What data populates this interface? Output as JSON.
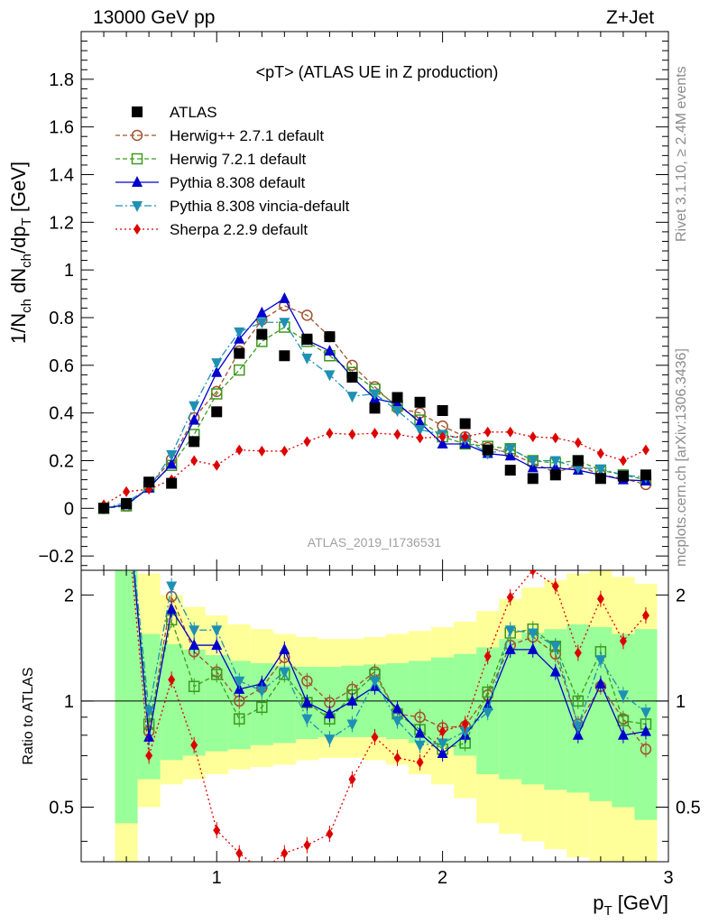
{
  "header": {
    "energy_label": "13000 GeV pp",
    "process_label": "Z+Jet"
  },
  "side_labels": {
    "rivet": "Rivet 3.1.10, ≥ 2.4M events",
    "mcplots": "mcplots.cern.ch [arXiv:1306.3436]"
  },
  "colors": {
    "ATLAS": "#000000",
    "herwigpp": "#a0522d",
    "herwig7": "#3c9a1e",
    "pythia": "#0000cc",
    "vincia": "#1e90b4",
    "sherpa": "#dd0000",
    "band_inner": "#99ff99",
    "band_outer": "#ffff99"
  },
  "chart_data": [
    {
      "type": "line",
      "title": "<pT> (ATLAS UE in Z production)",
      "watermark": "ATLAS_2019_I1736531",
      "ylabel": "1/N_ch dN_ch/dp_T [GeV]",
      "xlim": [
        0.4,
        3.0
      ],
      "ylim": [
        -0.26,
        2.0
      ],
      "y_ticks": [
        "−0.2",
        "0",
        "0.2",
        "0.4",
        "0.6",
        "0.8",
        "1",
        "1.2",
        "1.4",
        "1.6",
        "1.8"
      ],
      "legend_placement": "top-left",
      "x": [
        0.5,
        0.6,
        0.7,
        0.8,
        0.9,
        1.0,
        1.1,
        1.2,
        1.3,
        1.4,
        1.5,
        1.6,
        1.7,
        1.8,
        1.9,
        2.0,
        2.1,
        2.2,
        2.3,
        2.4,
        2.5,
        2.6,
        2.7,
        2.8,
        2.9
      ],
      "series": [
        {
          "name": "ATLAS",
          "values": [
            0.0,
            0.02,
            0.11,
            0.105,
            0.28,
            0.405,
            0.65,
            0.73,
            0.64,
            0.71,
            0.72,
            0.55,
            0.42,
            0.465,
            0.445,
            0.41,
            0.355,
            0.245,
            0.16,
            0.125,
            0.14,
            0.2,
            0.125,
            0.135,
            0.14
          ]
        },
        {
          "name": "Herwig++ 2.7.1 default",
          "values": [
            0.0,
            0.01,
            0.09,
            0.205,
            0.38,
            0.49,
            0.66,
            0.79,
            0.85,
            0.81,
            0.72,
            0.6,
            0.51,
            0.42,
            0.4,
            0.345,
            0.3,
            0.255,
            0.23,
            0.19,
            0.15,
            0.18,
            0.14,
            0.125,
            0.1
          ]
        },
        {
          "name": "Herwig 7.2.1 default",
          "values": [
            0.0,
            0.01,
            0.09,
            0.18,
            0.31,
            0.48,
            0.58,
            0.7,
            0.76,
            0.7,
            0.64,
            0.57,
            0.5,
            0.43,
            0.37,
            0.3,
            0.27,
            0.26,
            0.25,
            0.2,
            0.19,
            0.2,
            0.16,
            0.14,
            0.12
          ]
        },
        {
          "name": "Pythia 8.308 default",
          "values": [
            0.0,
            0.015,
            0.085,
            0.185,
            0.37,
            0.57,
            0.71,
            0.82,
            0.88,
            0.705,
            0.66,
            0.55,
            0.46,
            0.44,
            0.36,
            0.27,
            0.27,
            0.23,
            0.22,
            0.17,
            0.17,
            0.16,
            0.14,
            0.12,
            0.115
          ]
        },
        {
          "name": "Pythia 8.308 vincia-default",
          "values": [
            0.0,
            0.025,
            0.085,
            0.225,
            0.43,
            0.61,
            0.74,
            0.78,
            0.78,
            0.63,
            0.56,
            0.47,
            0.48,
            0.41,
            0.33,
            0.31,
            0.29,
            0.23,
            0.25,
            0.2,
            0.2,
            0.17,
            0.165,
            0.14,
            0.13
          ]
        },
        {
          "name": "Sherpa 2.2.9 default",
          "values": [
            0.015,
            0.07,
            0.08,
            0.12,
            0.2,
            0.18,
            0.245,
            0.24,
            0.24,
            0.28,
            0.315,
            0.31,
            0.315,
            0.31,
            0.295,
            0.3,
            0.3,
            0.32,
            0.32,
            0.3,
            0.295,
            0.275,
            0.23,
            0.2,
            0.245
          ]
        }
      ]
    },
    {
      "type": "line",
      "ylabel": "Ratio to ATLAS",
      "xlabel": "p_T [GeV]",
      "xlim": [
        0.4,
        3.0
      ],
      "ylim": [
        0.35,
        2.35
      ],
      "log_y": true,
      "reference_line": 1,
      "y_ticks": [
        "0.5",
        "1",
        "2"
      ],
      "x_ticks": [
        "1",
        "2",
        "3"
      ],
      "x": [
        0.5,
        0.6,
        0.7,
        0.8,
        0.9,
        1.0,
        1.1,
        1.2,
        1.3,
        1.4,
        1.5,
        1.6,
        1.7,
        1.8,
        1.9,
        2.0,
        2.1,
        2.2,
        2.3,
        2.4,
        2.5,
        2.6,
        2.7,
        2.8,
        2.9
      ],
      "bands": {
        "inner_low": [
          null,
          0.45,
          0.6,
          0.68,
          0.7,
          0.72,
          0.73,
          0.75,
          0.76,
          0.78,
          0.79,
          0.79,
          0.79,
          0.78,
          0.76,
          0.74,
          0.7,
          0.62,
          0.6,
          0.58,
          0.56,
          0.55,
          0.52,
          0.5,
          0.46
        ],
        "inner_high": [
          null,
          2.6,
          1.55,
          1.45,
          1.4,
          1.35,
          1.3,
          1.28,
          1.26,
          1.25,
          1.25,
          1.26,
          1.27,
          1.28,
          1.3,
          1.33,
          1.36,
          1.42,
          1.5,
          1.56,
          1.6,
          1.65,
          1.62,
          1.55,
          1.6
        ],
        "outer_low": [
          null,
          0.33,
          0.5,
          0.58,
          0.6,
          0.62,
          0.64,
          0.65,
          0.66,
          0.68,
          0.69,
          0.69,
          0.68,
          0.66,
          0.62,
          0.58,
          0.53,
          0.45,
          0.42,
          0.4,
          0.38,
          0.36,
          0.34,
          0.33,
          0.31
        ],
        "outer_high": [
          null,
          3.5,
          2.3,
          2.0,
          1.85,
          1.75,
          1.65,
          1.6,
          1.55,
          1.52,
          1.5,
          1.5,
          1.52,
          1.55,
          1.58,
          1.62,
          1.68,
          1.8,
          1.95,
          2.1,
          2.2,
          2.3,
          2.35,
          2.25,
          2.15
        ]
      },
      "series": [
        {
          "name": "Herwig++ 2.7.1 default",
          "values": [
            null,
            4.0,
            0.82,
            1.98,
            1.38,
            1.21,
            1.0,
            1.09,
            1.33,
            1.14,
            0.99,
            1.08,
            1.21,
            0.92,
            0.9,
            0.84,
            0.85,
            1.04,
            1.44,
            1.52,
            1.36,
            0.86,
            1.1,
            0.89,
            0.73
          ]
        },
        {
          "name": "Herwig 7.2.1 default",
          "values": [
            null,
            4.0,
            0.86,
            1.7,
            1.1,
            1.19,
            0.89,
            0.96,
            1.19,
            0.99,
            0.89,
            1.04,
            1.19,
            0.92,
            0.83,
            0.73,
            0.76,
            1.06,
            1.56,
            1.6,
            1.43,
            1.0,
            1.38,
            0.88,
            0.86
          ]
        },
        {
          "name": "Pythia 8.308 default",
          "values": [
            null,
            4.0,
            0.79,
            1.82,
            1.44,
            1.44,
            1.08,
            1.12,
            1.4,
            0.99,
            0.92,
            1.0,
            1.1,
            0.95,
            0.81,
            0.71,
            0.8,
            0.97,
            1.4,
            1.4,
            1.21,
            0.8,
            1.12,
            0.8,
            0.82
          ]
        },
        {
          "name": "Pythia 8.308 vincia-default",
          "values": [
            null,
            4.0,
            0.94,
            2.12,
            1.59,
            1.59,
            1.14,
            1.07,
            1.21,
            0.89,
            0.78,
            0.86,
            1.14,
            0.88,
            0.75,
            0.76,
            0.82,
            0.93,
            1.59,
            1.56,
            1.43,
            0.85,
            1.31,
            1.04,
            0.93
          ]
        },
        {
          "name": "Sherpa 2.2.9 default",
          "values": [
            null,
            3.5,
            0.7,
            1.15,
            0.75,
            0.43,
            0.37,
            0.33,
            0.37,
            0.39,
            0.42,
            0.6,
            0.79,
            0.69,
            0.67,
            0.82,
            0.86,
            1.34,
            1.97,
            2.35,
            2.12,
            1.37,
            1.95,
            1.48,
            1.75
          ]
        }
      ]
    }
  ]
}
